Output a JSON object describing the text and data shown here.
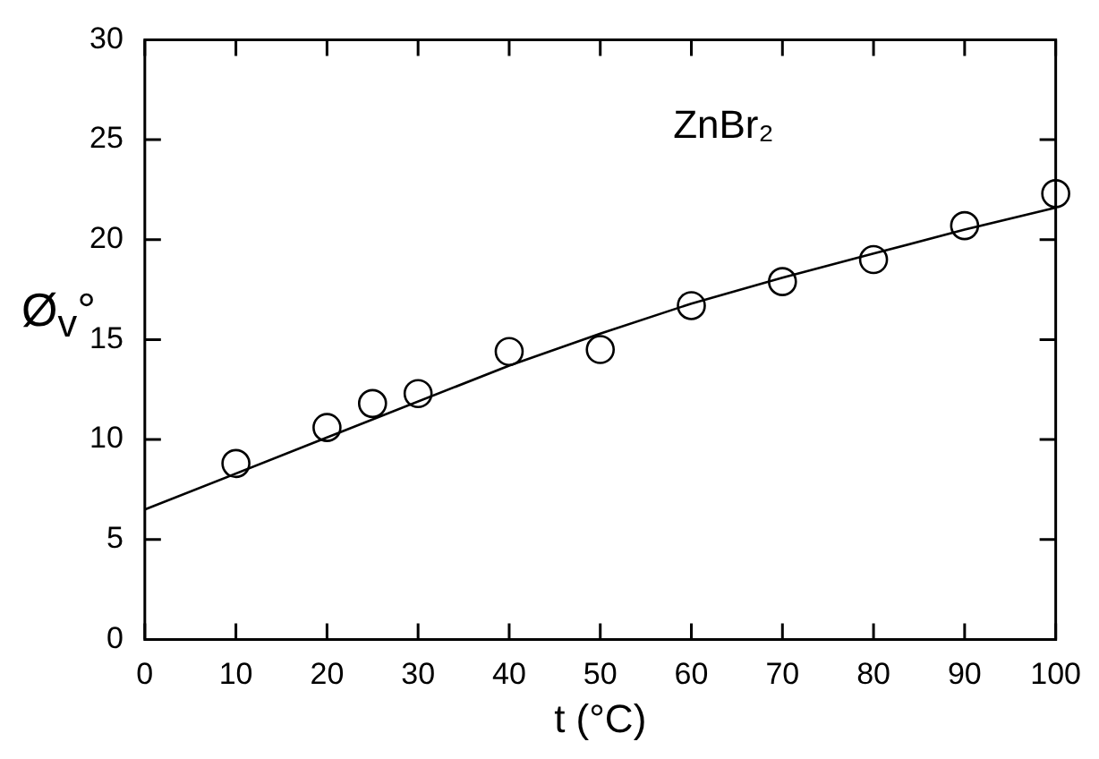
{
  "chart_data": {
    "type": "scatter",
    "xlabel": "t (°C)",
    "ylabel": "Ø$_{v}$°",
    "annotations": [
      "ZnBr₂"
    ],
    "xlim": [
      0,
      100
    ],
    "ylim": [
      0,
      30
    ],
    "xticks": [
      0,
      10,
      20,
      30,
      40,
      50,
      60,
      70,
      80,
      90,
      100
    ],
    "yticks": [
      0,
      5,
      10,
      15,
      20,
      25,
      30
    ],
    "marker": "circle",
    "series": [
      {
        "color": "#000000",
        "x": [
          10,
          20,
          25,
          30,
          40,
          50,
          60,
          70,
          80,
          90,
          100
        ],
        "values": [
          8.8,
          10.6,
          11.8,
          12.3,
          14.4,
          14.5,
          16.7,
          17.9,
          19.0,
          20.7,
          22.3
        ]
      },
      {
        "type": "line",
        "color": "#000000",
        "marker": "none",
        "line_style": "solid",
        "x": [
          0,
          20,
          40,
          50,
          60,
          70,
          80,
          90,
          100
        ],
        "values": [
          6.5,
          10.1,
          13.7,
          15.3,
          16.8,
          18.1,
          19.3,
          20.5,
          21.6
        ]
      }
    ]
  }
}
